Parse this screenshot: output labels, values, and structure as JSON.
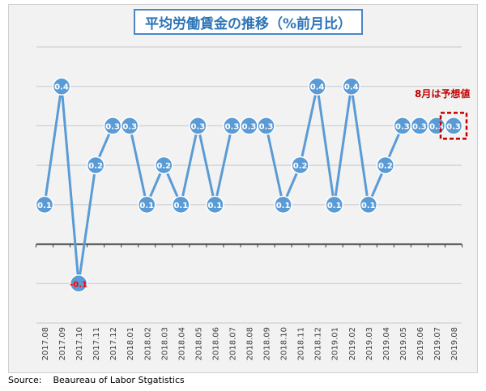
{
  "chart_data": {
    "type": "line",
    "title": "平均労働賃金の推移（%前月比）",
    "categories": [
      "2017.08",
      "2017.09",
      "2017.10",
      "2017.11",
      "2017.12",
      "2018.01",
      "2018.02",
      "2018.03",
      "2018.04",
      "2018.05",
      "2018.06",
      "2018.07",
      "2018.08",
      "2018.09",
      "2018.10",
      "2018.11",
      "2018.12",
      "2019.01",
      "2019.02",
      "2019.03",
      "2019.04",
      "2019.05",
      "2019.06",
      "2019.07",
      "2019.08"
    ],
    "values": [
      0.1,
      0.4,
      -0.1,
      0.2,
      0.3,
      0.3,
      0.1,
      0.2,
      0.1,
      0.3,
      0.1,
      0.3,
      0.3,
      0.3,
      0.1,
      0.2,
      0.4,
      0.1,
      0.4,
      0.1,
      0.2,
      0.3,
      0.3,
      0.3,
      0.3
    ],
    "data_labels": [
      "0.1",
      "0.4",
      "-0.1",
      "0.2",
      "0.3",
      "0.3",
      "0.1",
      "0.2",
      "0.1",
      "0.3",
      "0.1",
      "0.3",
      "0.3",
      "0.3",
      "0.1",
      "0.2",
      "0.4",
      "0.1",
      "0.4",
      "0.1",
      "0.2",
      "0.3",
      "0.3",
      "0.3",
      "0.3"
    ],
    "ylim": [
      -0.2,
      0.5
    ],
    "grid": true,
    "xlabel": "",
    "ylabel": "",
    "annotation": "8月は予想値",
    "highlight_index": 24
  },
  "colors": {
    "line": "#5b9bd5",
    "marker": "#5b9bd5",
    "marker_stroke": "#ffffff",
    "label_text": "#ffffff",
    "negative_label_text": "#ff0000",
    "annotation": "#c00000",
    "grid": "#c8c8c8",
    "zero_axis": "#404040",
    "title_text": "#2e75b6",
    "title_border": "#4a86c8"
  },
  "source": "Source:    Beaureau of Labor Stgatistics"
}
